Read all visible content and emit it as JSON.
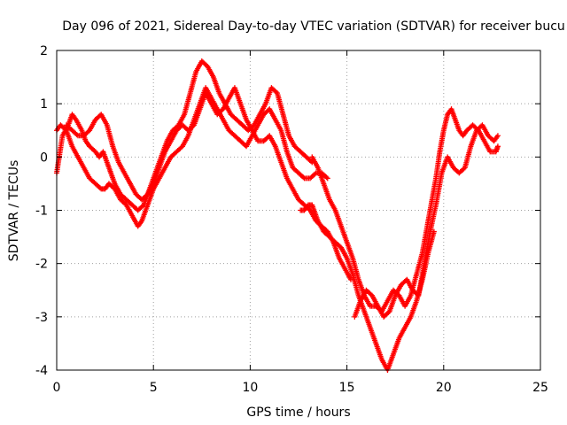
{
  "chart_data": {
    "type": "scatter",
    "title": "Day 096 of 2021, Sidereal Day-to-day VTEC variation (SDTVAR) for receiver bucu",
    "xlabel": "GPS time / hours",
    "ylabel": "SDTVAR / TECUs",
    "xlim": [
      0,
      25
    ],
    "ylim": [
      -4,
      2
    ],
    "xticks": [
      0,
      5,
      10,
      15,
      20,
      25
    ],
    "yticks": [
      -4,
      -3,
      -2,
      -1,
      0,
      1,
      2
    ],
    "grid": true,
    "marker": "+",
    "color": "#ff0000",
    "series": [
      {
        "x": [
          0.0,
          0.3,
          0.6,
          0.8,
          1.0,
          1.3,
          1.5,
          1.7,
          2.0,
          2.2,
          2.4,
          2.6,
          2.8,
          3.0,
          3.3,
          3.6,
          3.9,
          4.2,
          4.5,
          4.8,
          5.1,
          5.4,
          5.7,
          6.0,
          6.3,
          6.6,
          6.9,
          7.2,
          7.5,
          7.8,
          8.1,
          8.4,
          8.7,
          9.0,
          9.3,
          9.6,
          9.9,
          10.2,
          10.5,
          10.8,
          11.1,
          11.4,
          11.7,
          12.0,
          12.3,
          12.6,
          12.9,
          13.2
        ],
        "y": [
          -0.3,
          0.4,
          0.6,
          0.8,
          0.7,
          0.5,
          0.3,
          0.2,
          0.1,
          0.0,
          0.1,
          -0.1,
          -0.3,
          -0.5,
          -0.7,
          -0.8,
          -0.9,
          -1.0,
          -0.9,
          -0.6,
          -0.3,
          0.0,
          0.3,
          0.5,
          0.6,
          0.8,
          1.2,
          1.6,
          1.8,
          1.7,
          1.5,
          1.2,
          1.0,
          0.8,
          0.7,
          0.6,
          0.5,
          0.6,
          0.8,
          1.0,
          1.3,
          1.2,
          0.8,
          0.4,
          0.2,
          0.1,
          0.0,
          -0.1
        ]
      },
      {
        "x": [
          0.0,
          0.2,
          0.5,
          0.8,
          1.1,
          1.4,
          1.7,
          2.0,
          2.3,
          2.5,
          2.7,
          3.0,
          3.3,
          3.6,
          3.9,
          4.2,
          4.4,
          4.7,
          5.0,
          5.3,
          5.6,
          5.9,
          6.2,
          6.5,
          6.8,
          7.1,
          7.4,
          7.7,
          8.0,
          8.3,
          8.6,
          8.9,
          9.2,
          9.5,
          9.8,
          10.1,
          10.4,
          10.7,
          11.0,
          11.3,
          11.6,
          11.9,
          12.2,
          12.5,
          12.8,
          13.1,
          13.4,
          13.7,
          14.0
        ],
        "y": [
          0.5,
          0.6,
          0.5,
          0.2,
          0.0,
          -0.2,
          -0.4,
          -0.5,
          -0.6,
          -0.6,
          -0.5,
          -0.6,
          -0.8,
          -0.9,
          -1.1,
          -1.3,
          -1.2,
          -0.9,
          -0.6,
          -0.4,
          -0.2,
          0.0,
          0.1,
          0.2,
          0.4,
          0.7,
          1.0,
          1.3,
          1.1,
          0.9,
          0.7,
          0.5,
          0.4,
          0.3,
          0.2,
          0.4,
          0.6,
          0.8,
          0.9,
          0.7,
          0.5,
          0.1,
          -0.2,
          -0.3,
          -0.4,
          -0.4,
          -0.3,
          -0.3,
          -0.4
        ]
      },
      {
        "x": [
          0.5,
          0.8,
          1.1,
          1.4,
          1.7,
          2.0,
          2.3,
          2.6,
          2.9,
          3.2,
          3.5,
          3.8,
          4.1,
          4.4,
          4.7,
          5.0,
          5.3,
          5.6,
          5.9,
          6.2,
          6.5,
          6.8,
          7.1,
          7.4,
          7.7,
          8.0,
          8.3,
          8.6,
          8.9,
          9.2,
          9.5,
          9.8,
          10.1,
          10.4,
          10.7,
          11.0,
          11.3,
          11.6,
          11.9,
          12.2,
          12.5,
          12.8,
          13.1,
          13.4,
          13.7,
          14.0,
          14.3,
          14.6,
          14.9,
          15.2
        ],
        "y": [
          0.6,
          0.5,
          0.4,
          0.4,
          0.5,
          0.7,
          0.8,
          0.6,
          0.2,
          -0.1,
          -0.3,
          -0.5,
          -0.7,
          -0.8,
          -0.7,
          -0.5,
          -0.2,
          0.1,
          0.3,
          0.5,
          0.6,
          0.5,
          0.6,
          0.9,
          1.2,
          1.0,
          0.8,
          0.9,
          1.1,
          1.3,
          1.0,
          0.7,
          0.5,
          0.3,
          0.3,
          0.4,
          0.2,
          -0.1,
          -0.4,
          -0.6,
          -0.8,
          -0.9,
          -1.0,
          -1.2,
          -1.3,
          -1.4,
          -1.6,
          -1.9,
          -2.1,
          -2.3
        ]
      },
      {
        "x": [
          12.6,
          12.8,
          13.0,
          13.2,
          13.5,
          13.8,
          14.1,
          14.4,
          14.7,
          15.0,
          15.3,
          15.6,
          15.9,
          16.2,
          16.5,
          16.8,
          17.1,
          17.4,
          17.7,
          18.0,
          18.3,
          18.6,
          18.9,
          19.2,
          19.5
        ],
        "y": [
          -1.0,
          -1.0,
          -0.9,
          -0.9,
          -1.2,
          -1.4,
          -1.5,
          -1.6,
          -1.7,
          -1.9,
          -2.2,
          -2.6,
          -2.9,
          -3.2,
          -3.5,
          -3.8,
          -4.0,
          -3.7,
          -3.4,
          -3.2,
          -3.0,
          -2.7,
          -2.3,
          -1.8,
          -1.4
        ]
      },
      {
        "x": [
          13.2,
          13.5,
          13.8,
          14.1,
          14.4,
          14.7,
          15.0,
          15.3,
          15.6,
          15.9,
          16.2,
          16.5,
          16.8,
          17.1,
          17.4,
          17.7,
          18.0,
          18.3,
          18.6,
          18.9,
          19.2,
          19.4,
          19.6,
          19.8,
          20.0,
          20.2,
          20.4,
          20.6,
          20.8,
          21.0,
          21.2,
          21.5,
          21.8,
          22.1,
          22.4,
          22.7,
          22.8
        ],
        "y": [
          0.0,
          -0.2,
          -0.5,
          -0.8,
          -1.0,
          -1.3,
          -1.6,
          -1.9,
          -2.3,
          -2.6,
          -2.8,
          -2.8,
          -2.9,
          -2.7,
          -2.5,
          -2.6,
          -2.8,
          -2.6,
          -2.2,
          -1.8,
          -1.2,
          -0.8,
          -0.4,
          0.1,
          0.5,
          0.8,
          0.9,
          0.7,
          0.5,
          0.4,
          0.5,
          0.6,
          0.5,
          0.3,
          0.1,
          0.1,
          0.2
        ]
      },
      {
        "x": [
          15.4,
          15.7,
          16.0,
          16.3,
          16.6,
          16.9,
          17.2,
          17.5,
          17.8,
          18.1,
          18.4,
          18.7,
          19.0,
          19.3,
          19.6,
          19.9,
          20.2,
          20.5,
          20.8,
          21.1,
          21.4,
          21.7,
          22.0,
          22.3,
          22.6,
          22.8
        ],
        "y": [
          -3.0,
          -2.7,
          -2.5,
          -2.6,
          -2.8,
          -3.0,
          -2.9,
          -2.6,
          -2.4,
          -2.3,
          -2.5,
          -2.6,
          -2.0,
          -1.4,
          -0.9,
          -0.3,
          0.0,
          -0.2,
          -0.3,
          -0.2,
          0.2,
          0.5,
          0.6,
          0.4,
          0.3,
          0.4
        ]
      }
    ]
  }
}
